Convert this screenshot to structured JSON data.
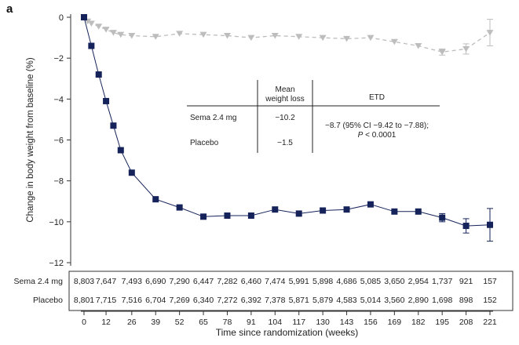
{
  "panel_label": "a",
  "chart_data": {
    "type": "line",
    "xlabel": "Time since randomization (weeks)",
    "ylabel": "Change in body weight from baseline (%)",
    "xlim": [
      0,
      221
    ],
    "ylim": [
      -12,
      0
    ],
    "x_ticks": [
      0,
      12,
      26,
      39,
      52,
      65,
      78,
      91,
      104,
      117,
      130,
      143,
      156,
      169,
      182,
      195,
      208,
      221
    ],
    "y_ticks": [
      0,
      -2,
      -4,
      -6,
      -8,
      -10,
      -12
    ],
    "series": [
      {
        "name": "Sema 2.4 mg",
        "color": "#15235a",
        "marker": "square",
        "x": [
          0,
          4,
          8,
          12,
          16,
          20,
          26,
          39,
          52,
          65,
          78,
          91,
          104,
          117,
          130,
          143,
          156,
          169,
          182,
          195,
          208,
          221
        ],
        "values": [
          0,
          -1.4,
          -2.8,
          -4.1,
          -5.3,
          -6.5,
          -7.6,
          -8.9,
          -9.3,
          -9.75,
          -9.7,
          -9.7,
          -9.4,
          -9.6,
          -9.45,
          -9.4,
          -9.15,
          -9.5,
          -9.5,
          -9.8,
          -10.2,
          -10.15
        ],
        "error": [
          0,
          0,
          0,
          0,
          0,
          0,
          0,
          0,
          0,
          0,
          0,
          0,
          0,
          0,
          0,
          0,
          0,
          0,
          0,
          0.2,
          0.35,
          0.8
        ]
      },
      {
        "name": "Placebo",
        "color": "#bdbdbd",
        "marker": "triangle-down",
        "x": [
          0,
          2,
          4,
          8,
          12,
          16,
          20,
          26,
          39,
          52,
          65,
          78,
          91,
          104,
          117,
          130,
          143,
          156,
          169,
          182,
          195,
          208,
          221
        ],
        "values": [
          0,
          -0.2,
          -0.3,
          -0.45,
          -0.6,
          -0.75,
          -0.85,
          -0.9,
          -0.95,
          -0.8,
          -0.85,
          -0.9,
          -1.0,
          -0.9,
          -0.95,
          -1.0,
          -1.05,
          -1.0,
          -1.2,
          -1.4,
          -1.7,
          -1.55,
          -0.75
        ],
        "error": [
          0,
          0,
          0,
          0,
          0,
          0,
          0,
          0,
          0,
          0,
          0,
          0,
          0,
          0,
          0,
          0,
          0,
          0,
          0,
          0,
          0.15,
          0.25,
          0.65
        ]
      }
    ],
    "inset_table": {
      "headers": [
        "",
        "Mean\nweight loss",
        "ETD"
      ],
      "rows": [
        {
          "label": "Sema 2.4 mg",
          "mean": "−10.2"
        },
        {
          "label": "Placebo",
          "mean": "−1.5"
        }
      ],
      "etd_line1": "−8.7 (95% CI −9.42 to −7.88);",
      "etd_line2": "P < 0.0001"
    },
    "at_risk": {
      "rows": [
        {
          "label": "Sema 2.4 mg",
          "values": [
            "8,803",
            "7,647",
            "7,493",
            "6,690",
            "7,290",
            "6,447",
            "7,282",
            "6,460",
            "7,474",
            "5,991",
            "5,898",
            "4,686",
            "5,085",
            "3,650",
            "2,954",
            "1,737",
            "921",
            "157"
          ]
        },
        {
          "label": "Placebo",
          "values": [
            "8,801",
            "7,715",
            "7,516",
            "6,704",
            "7,269",
            "6,340",
            "7,272",
            "6,392",
            "7,378",
            "5,871",
            "5,879",
            "4,583",
            "5,014",
            "3,560",
            "2,890",
            "1,698",
            "898",
            "152"
          ]
        }
      ]
    }
  }
}
